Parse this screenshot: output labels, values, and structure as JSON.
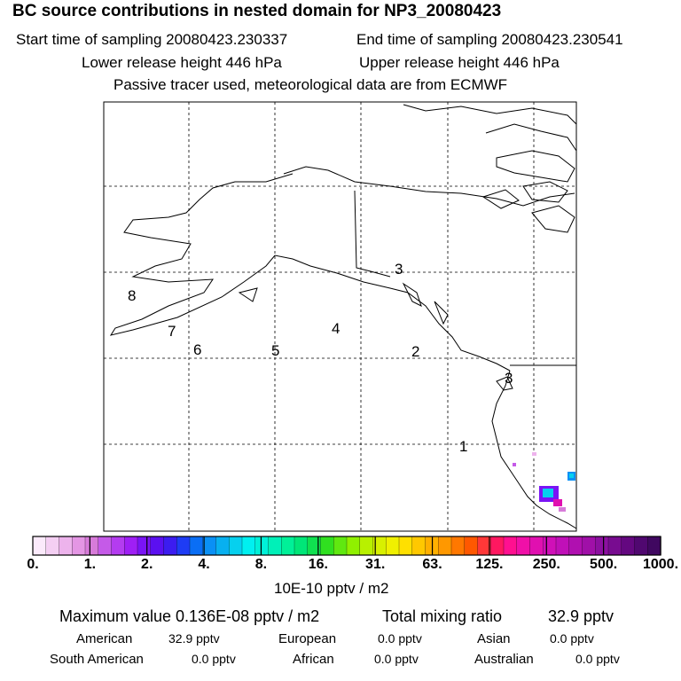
{
  "header": {
    "title": "BC  source contributions in nested domain for NP3_20080423",
    "start_label": "Start time of sampling 20080423.230337",
    "end_label": "End time of sampling 20080423.230541",
    "lower_label": "Lower release height  446 hPa",
    "upper_label": "Upper release height  446 hPa",
    "tracer_label": "Passive tracer used, meteorological data are from ECMWF"
  },
  "map": {
    "point_labels": [
      "1",
      "2",
      "3",
      "4",
      "5",
      "6",
      "7",
      "8"
    ],
    "coast_color": "#000000",
    "grid_color": "#000000"
  },
  "colorbar": {
    "tick_labels": [
      "0.",
      "1.",
      "2.",
      "4.",
      "8.",
      "16.",
      "31.",
      "63.",
      "125.",
      "250.",
      "500.",
      "1000."
    ],
    "colors": [
      "#fbeafb",
      "#f4cff3",
      "#edb3ec",
      "#e496e4",
      "#d77bd9",
      "#c55ae8",
      "#b43cf0",
      "#9f1ff5",
      "#7a14f5",
      "#5b10f0",
      "#3c1cf0",
      "#1e3cf5",
      "#0a6ef5",
      "#0a90f5",
      "#08b0f0",
      "#06d0ee",
      "#00f0f0",
      "#00f0d8",
      "#00f0b8",
      "#00f098",
      "#00e678",
      "#10e050",
      "#30e020",
      "#60e810",
      "#90f000",
      "#b8f000",
      "#d8f000",
      "#f0f000",
      "#ffe000",
      "#ffc800",
      "#ffb000",
      "#ff9800",
      "#ff7800",
      "#ff5800",
      "#ff3838",
      "#ff1860",
      "#ff1090",
      "#f010a8",
      "#e010b0",
      "#d010b8",
      "#c010b8",
      "#b010b0",
      "#a010a8",
      "#8c10a0",
      "#780c90",
      "#640880",
      "#500870",
      "#400860"
    ],
    "unit_label": "10E-10 pptv / m2"
  },
  "summary": {
    "max_label": "Maximum value  0.136E-08 pptv / m2",
    "total_label": "Total mixing ratio",
    "total_value": "32.9 pptv",
    "rows": [
      [
        {
          "name": "American",
          "value": "32.9 pptv"
        },
        {
          "name": "European",
          "value": "0.0 pptv"
        },
        {
          "name": "Asian",
          "value": "0.0 pptv"
        }
      ],
      [
        {
          "name": "South American",
          "value": "0.0 pptv"
        },
        {
          "name": "African",
          "value": "0.0 pptv"
        },
        {
          "name": "Australian",
          "value": "0.0 pptv"
        }
      ]
    ]
  }
}
